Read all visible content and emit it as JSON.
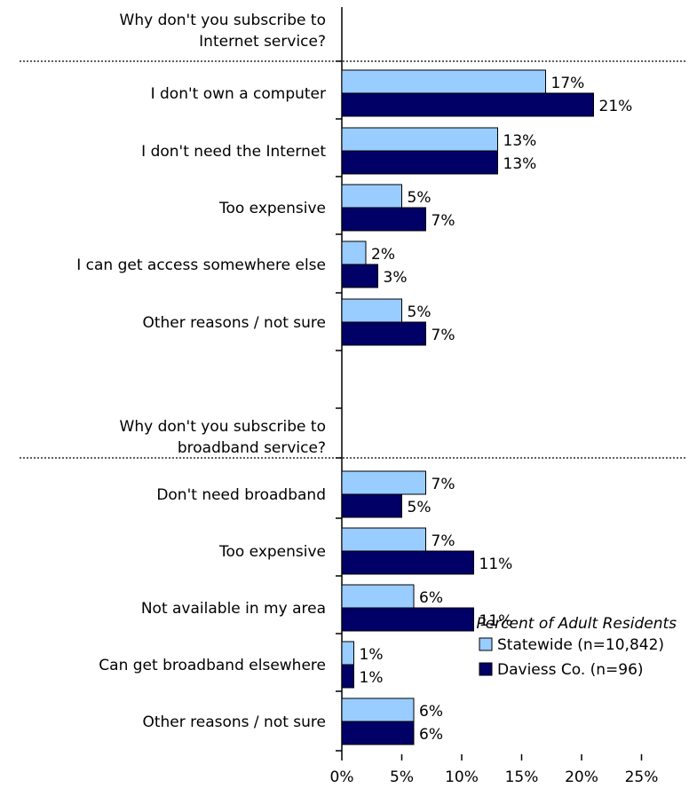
{
  "chart_data": {
    "type": "bar",
    "orientation": "horizontal",
    "xlim": [
      0,
      25
    ],
    "x_ticks": [
      "0%",
      "5%",
      "10%",
      "15%",
      "20%",
      "25%"
    ],
    "legend_title": "Percent of Adult Residents",
    "legend_position": "bottom-right",
    "series": [
      {
        "name": "Statewide (n=10,842)",
        "color": "#99ccff"
      },
      {
        "name": "Daviess Co. (n=96)",
        "color": "#000066"
      }
    ],
    "sections": [
      {
        "header": [
          "Why don't you subscribe to",
          "Internet service?"
        ],
        "categories": [
          {
            "label": "I don't own a computer",
            "values": [
              17,
              21
            ],
            "labels": [
              "17%",
              "21%"
            ]
          },
          {
            "label": "I don't need the Internet",
            "values": [
              13,
              13
            ],
            "labels": [
              "13%",
              "13%"
            ]
          },
          {
            "label": "Too expensive",
            "values": [
              5,
              7
            ],
            "labels": [
              "5%",
              "7%"
            ]
          },
          {
            "label": "I can get access somewhere else",
            "values": [
              2,
              3
            ],
            "labels": [
              "2%",
              "3%"
            ]
          },
          {
            "label": "Other reasons / not sure",
            "values": [
              5,
              7
            ],
            "labels": [
              "5%",
              "7%"
            ]
          }
        ]
      },
      {
        "header": [
          "Why don't you subscribe to",
          "broadband service?"
        ],
        "categories": [
          {
            "label": "Don't need broadband",
            "values": [
              7,
              5
            ],
            "labels": [
              "7%",
              "5%"
            ]
          },
          {
            "label": "Too expensive",
            "values": [
              7,
              11
            ],
            "labels": [
              "7%",
              "11%"
            ]
          },
          {
            "label": "Not available in my area",
            "values": [
              6,
              11
            ],
            "labels": [
              "6%",
              "11%"
            ]
          },
          {
            "label": "Can get broadband elsewhere",
            "values": [
              1,
              1
            ],
            "labels": [
              "1%",
              "1%"
            ]
          },
          {
            "label": "Other reasons / not sure",
            "values": [
              6,
              6
            ],
            "labels": [
              "6%",
              "6%"
            ]
          }
        ]
      }
    ]
  }
}
